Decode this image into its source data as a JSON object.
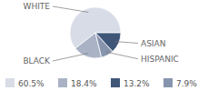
{
  "chart_data": {
    "type": "pie",
    "categories": [
      "WHITE",
      "BLACK",
      "ASIAN",
      "HISPANIC"
    ],
    "values": [
      60.5,
      18.4,
      13.2,
      7.9
    ],
    "value_labels": [
      "60.5%",
      "18.4%",
      "13.2%",
      "7.9%"
    ],
    "colors": [
      "#d8dce6",
      "#aab3c6",
      "#3f5678",
      "#8794ad"
    ],
    "legend": "bottom"
  }
}
